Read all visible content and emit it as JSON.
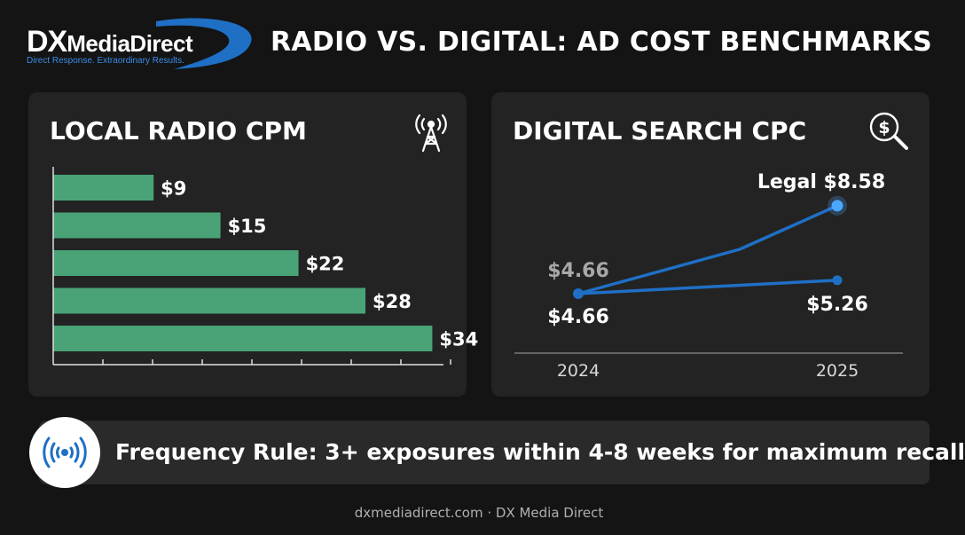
{
  "brand": {
    "logo_main": "DX",
    "logo_rest": "MediaDirect",
    "tagline": "Direct Response. Extraordinary Results."
  },
  "title": "RADIO VS. DIGITAL: AD COST BENCHMARKS",
  "colors": {
    "background": "#141414",
    "panel": "#232323",
    "bar": "#4aa377",
    "line": "#1f6fc5",
    "accent_blue": "#3a8ee8",
    "highlight_point": "#4aa8ff"
  },
  "panels": {
    "radio": {
      "title": "LOCAL RADIO CPM",
      "icon": "radio-tower-icon"
    },
    "search": {
      "title": "DIGITAL SEARCH CPC",
      "icon": "dollar-search-icon"
    }
  },
  "chart_data": [
    {
      "type": "bar",
      "orientation": "horizontal",
      "title": "LOCAL RADIO CPM",
      "values": [
        9,
        15,
        22,
        28,
        34
      ],
      "value_labels": [
        "$9",
        "$15",
        "$22",
        "$28",
        "$34"
      ],
      "xlim": [
        0,
        35
      ],
      "grid": false
    },
    {
      "type": "line",
      "title": "DIGITAL SEARCH CPC",
      "x": [
        "2024",
        "2025"
      ],
      "series": [
        {
          "values": [
            4.66,
            8.58
          ],
          "labels": [
            "$4.66",
            "Legal $8.58"
          ]
        },
        {
          "values": [
            4.66,
            5.26
          ],
          "labels": [
            "$4.66",
            "$5.26"
          ]
        }
      ],
      "ylim": [
        3,
        10
      ],
      "grid": false
    }
  ],
  "frequency": {
    "icon": "broadcast-signal-icon",
    "text": "Frequency Rule: 3+ exposures within 4-8 weeks for maximum recall"
  },
  "footer": "dxmediadirect.com · DX Media Direct"
}
